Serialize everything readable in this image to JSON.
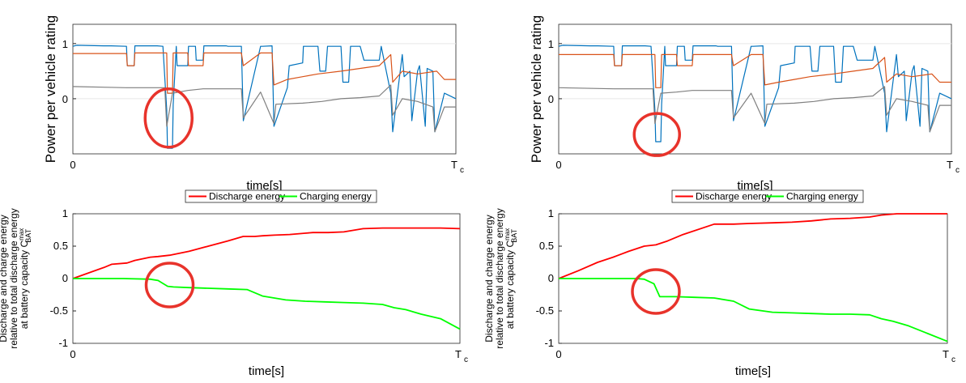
{
  "colors": {
    "power_orange": "#d95319",
    "power_blue": "#0072bd",
    "power_gray": "#7f7f7f",
    "discharge": "#ff0000",
    "charging": "#00ff00",
    "highlight_circle": "#e8332b"
  },
  "chart_data": [
    {
      "id": "left-power",
      "type": "line",
      "xlabel": "time[s]",
      "ylabel": "Power per vehicle rating",
      "x_ticks": [
        "0",
        "T",
        "c"
      ],
      "y_ticks": [
        "1",
        "0"
      ],
      "xlim": [
        0,
        1
      ],
      "ylim": [
        -1,
        1.35
      ],
      "grid": true,
      "series": [
        {
          "color": "power_blue",
          "x": [
            0,
            0.01,
            0.08,
            0.1,
            0.14,
            0.142,
            0.16,
            0.162,
            0.22,
            0.235,
            0.245,
            0.247,
            0.26,
            0.262,
            0.27,
            0.272,
            0.3,
            0.302,
            0.32,
            0.322,
            0.34,
            0.342,
            0.4,
            0.405,
            0.44,
            0.445,
            0.49,
            0.495,
            0.52,
            0.525,
            0.56,
            0.565,
            0.6,
            0.602,
            0.64,
            0.645,
            0.66,
            0.665,
            0.7,
            0.705,
            0.72,
            0.725,
            0.75,
            0.76,
            0.8,
            0.805,
            0.83,
            0.835,
            0.86,
            0.865,
            0.88,
            0.885,
            0.9,
            0.905,
            0.92,
            0.925,
            0.94,
            0.945,
            0.97,
            1
          ],
          "y": [
            0.95,
            0.97,
            0.96,
            0.96,
            0.95,
            0.6,
            0.6,
            0.96,
            0.96,
            0.95,
            -0.2,
            -0.9,
            -0.9,
            -0.1,
            0.95,
            0.6,
            0.6,
            0.95,
            0.95,
            0.7,
            0.7,
            0.96,
            0.96,
            0.95,
            0.95,
            -0.4,
            0.95,
            0.95,
            0.96,
            -0.5,
            0.2,
            0.6,
            0.65,
            0.95,
            0.95,
            0.5,
            0.5,
            0.95,
            0.95,
            0.3,
            0.3,
            0.95,
            0.95,
            0.7,
            0.7,
            0.95,
            0.1,
            -0.6,
            0.8,
            0.4,
            0.5,
            -0.4,
            0.5,
            0.6,
            -0.5,
            0.55,
            0.5,
            -0.6,
            0.1,
            0
          ]
        },
        {
          "color": "power_orange",
          "x": [
            0,
            0.14,
            0.142,
            0.16,
            0.162,
            0.245,
            0.247,
            0.26,
            0.262,
            0.3,
            0.302,
            0.34,
            0.342,
            0.44,
            0.445,
            0.49,
            0.495,
            0.52,
            0.525,
            0.56,
            0.6,
            0.64,
            0.7,
            0.75,
            0.8,
            0.83,
            0.835,
            0.86,
            0.9,
            0.95,
            0.97,
            1
          ],
          "y": [
            0.82,
            0.82,
            0.6,
            0.6,
            0.83,
            0.83,
            0.1,
            0.1,
            0.83,
            0.83,
            0.6,
            0.6,
            0.83,
            0.83,
            0.6,
            0.83,
            0.83,
            0.83,
            0.25,
            0.35,
            0.4,
            0.45,
            0.5,
            0.55,
            0.6,
            0.8,
            0.3,
            0.5,
            0.45,
            0.5,
            0.35,
            0.35
          ]
        },
        {
          "color": "power_gray",
          "x": [
            0,
            0.14,
            0.16,
            0.24,
            0.245,
            0.26,
            0.3,
            0.34,
            0.44,
            0.445,
            0.49,
            0.525,
            0.53,
            0.6,
            0.65,
            0.7,
            0.75,
            0.8,
            0.83,
            0.835,
            0.86,
            0.9,
            0.94,
            0.945,
            0.97,
            1
          ],
          "y": [
            0.22,
            0.2,
            0.2,
            0.2,
            -0.5,
            0.1,
            0.15,
            0.18,
            0.18,
            -0.35,
            0.12,
            -0.45,
            -0.1,
            -0.08,
            -0.05,
            0.0,
            0.02,
            0.05,
            0.25,
            -0.3,
            0.0,
            -0.05,
            -0.15,
            -0.6,
            -0.15,
            -0.15
          ]
        }
      ],
      "highlight": {
        "x": 0.25,
        "y": -0.35
      }
    },
    {
      "id": "right-power",
      "type": "line",
      "xlabel": "time[s]",
      "ylabel": "Power per vehicle rating",
      "x_ticks": [
        "0",
        "T",
        "c"
      ],
      "y_ticks": [
        "1",
        "0"
      ],
      "xlim": [
        0,
        1
      ],
      "ylim": [
        -1,
        1.35
      ],
      "grid": true,
      "series": [
        {
          "color": "power_blue",
          "x": [
            0,
            0.01,
            0.08,
            0.1,
            0.14,
            0.142,
            0.16,
            0.162,
            0.22,
            0.235,
            0.245,
            0.247,
            0.26,
            0.262,
            0.27,
            0.272,
            0.3,
            0.302,
            0.32,
            0.322,
            0.34,
            0.342,
            0.4,
            0.405,
            0.44,
            0.445,
            0.49,
            0.495,
            0.52,
            0.525,
            0.56,
            0.565,
            0.6,
            0.602,
            0.64,
            0.645,
            0.66,
            0.665,
            0.7,
            0.705,
            0.72,
            0.725,
            0.75,
            0.76,
            0.8,
            0.805,
            0.83,
            0.835,
            0.86,
            0.865,
            0.88,
            0.885,
            0.9,
            0.905,
            0.92,
            0.925,
            0.94,
            0.945,
            0.97,
            1
          ],
          "y": [
            0.95,
            0.97,
            0.96,
            0.96,
            0.95,
            0.6,
            0.6,
            0.96,
            0.96,
            0.95,
            -0.2,
            -0.78,
            -0.78,
            -0.1,
            0.95,
            0.6,
            0.6,
            0.95,
            0.95,
            0.7,
            0.7,
            0.96,
            0.96,
            0.95,
            0.95,
            -0.4,
            0.95,
            0.95,
            0.96,
            -0.5,
            0.2,
            0.6,
            0.65,
            0.95,
            0.95,
            0.5,
            0.5,
            0.95,
            0.95,
            0.3,
            0.3,
            0.95,
            0.95,
            0.7,
            0.7,
            0.95,
            0.1,
            -0.6,
            0.8,
            0.4,
            0.5,
            -0.4,
            0.5,
            0.6,
            -0.5,
            0.55,
            0.5,
            -0.6,
            0.1,
            0
          ]
        },
        {
          "color": "power_orange",
          "x": [
            0,
            0.14,
            0.142,
            0.16,
            0.162,
            0.245,
            0.247,
            0.26,
            0.262,
            0.3,
            0.302,
            0.34,
            0.342,
            0.44,
            0.445,
            0.49,
            0.495,
            0.52,
            0.525,
            0.56,
            0.6,
            0.64,
            0.7,
            0.75,
            0.8,
            0.83,
            0.835,
            0.86,
            0.9,
            0.95,
            0.97,
            1
          ],
          "y": [
            0.8,
            0.8,
            0.6,
            0.6,
            0.8,
            0.8,
            0.2,
            0.2,
            0.8,
            0.8,
            0.6,
            0.6,
            0.8,
            0.8,
            0.6,
            0.8,
            0.8,
            0.8,
            0.25,
            0.3,
            0.35,
            0.4,
            0.45,
            0.5,
            0.55,
            0.75,
            0.3,
            0.45,
            0.4,
            0.45,
            0.3,
            0.3
          ]
        },
        {
          "color": "power_gray",
          "x": [
            0,
            0.14,
            0.16,
            0.24,
            0.245,
            0.26,
            0.3,
            0.34,
            0.44,
            0.445,
            0.49,
            0.525,
            0.53,
            0.6,
            0.65,
            0.7,
            0.75,
            0.8,
            0.83,
            0.835,
            0.86,
            0.9,
            0.94,
            0.945,
            0.97,
            1
          ],
          "y": [
            0.2,
            0.18,
            0.18,
            0.18,
            -0.45,
            0.1,
            0.12,
            0.15,
            0.15,
            -0.35,
            0.1,
            -0.45,
            -0.1,
            -0.08,
            -0.05,
            0.0,
            0.02,
            0.05,
            0.22,
            -0.3,
            0.0,
            -0.05,
            -0.12,
            -0.6,
            -0.12,
            -0.12
          ]
        }
      ],
      "highlight": {
        "x": 0.25,
        "y": -0.65
      }
    },
    {
      "id": "left-energy",
      "type": "line",
      "xlabel": "time[s]",
      "ylabel_lines": [
        "Discharge and charge energy",
        "relative to total discharge energy",
        "at battery capacity C"
      ],
      "ylabel_sup": "max",
      "ylabel_sub": "BAT",
      "x_ticks": [
        "0",
        "T",
        "c"
      ],
      "y_ticks": [
        "1",
        "0.5",
        "0",
        "-0.5",
        "-1"
      ],
      "xlim": [
        0,
        1
      ],
      "ylim": [
        -1,
        1
      ],
      "grid": false,
      "legend": {
        "placement": "top",
        "entries": [
          "Discharge energy",
          "Charging energy"
        ]
      },
      "series": [
        {
          "name": "Discharge energy",
          "color": "discharge",
          "x": [
            0,
            0.08,
            0.1,
            0.14,
            0.16,
            0.2,
            0.22,
            0.25,
            0.3,
            0.35,
            0.4,
            0.44,
            0.47,
            0.49,
            0.52,
            0.56,
            0.6,
            0.62,
            0.66,
            0.7,
            0.75,
            0.8,
            0.85,
            0.9,
            0.95,
            1
          ],
          "y": [
            0,
            0.17,
            0.22,
            0.24,
            0.28,
            0.33,
            0.34,
            0.36,
            0.42,
            0.5,
            0.58,
            0.65,
            0.65,
            0.66,
            0.67,
            0.68,
            0.7,
            0.71,
            0.71,
            0.72,
            0.77,
            0.78,
            0.78,
            0.78,
            0.78,
            0.77
          ]
        },
        {
          "name": "Charging energy",
          "color": "charging",
          "x": [
            0,
            0.13,
            0.2,
            0.22,
            0.245,
            0.26,
            0.3,
            0.4,
            0.45,
            0.49,
            0.55,
            0.6,
            0.65,
            0.7,
            0.75,
            0.8,
            0.83,
            0.86,
            0.9,
            0.95,
            1
          ],
          "y": [
            0,
            0,
            -0.01,
            -0.03,
            -0.12,
            -0.13,
            -0.14,
            -0.16,
            -0.17,
            -0.27,
            -0.33,
            -0.35,
            -0.36,
            -0.37,
            -0.38,
            -0.4,
            -0.45,
            -0.48,
            -0.55,
            -0.62,
            -0.78
          ]
        }
      ],
      "highlight": {
        "x": 0.25,
        "y": -0.1
      }
    },
    {
      "id": "right-energy",
      "type": "line",
      "xlabel": "time[s]",
      "ylabel_lines": [
        "Discharge and charge energy",
        "relative to total discharge energy",
        "at battery capacity C"
      ],
      "ylabel_sup": "max",
      "ylabel_sub": "BAT",
      "x_ticks": [
        "0",
        "T",
        "c"
      ],
      "y_ticks": [
        "1",
        "0.5",
        "0",
        "-0.5",
        "-1"
      ],
      "xlim": [
        0,
        1
      ],
      "ylim": [
        -1,
        1
      ],
      "grid": false,
      "legend": {
        "placement": "top",
        "entries": [
          "Discharge energy",
          "Charging energy"
        ]
      },
      "series": [
        {
          "name": "Discharge energy",
          "color": "discharge",
          "x": [
            0,
            0.05,
            0.1,
            0.14,
            0.18,
            0.22,
            0.25,
            0.28,
            0.32,
            0.4,
            0.45,
            0.49,
            0.55,
            0.6,
            0.65,
            0.7,
            0.75,
            0.8,
            0.83,
            0.87,
            0.9,
            0.95,
            1
          ],
          "y": [
            0,
            0.12,
            0.25,
            0.33,
            0.42,
            0.5,
            0.52,
            0.58,
            0.68,
            0.84,
            0.84,
            0.85,
            0.86,
            0.87,
            0.89,
            0.92,
            0.93,
            0.95,
            0.98,
            1,
            1,
            1,
            1
          ]
        },
        {
          "name": "Charging energy",
          "color": "charging",
          "x": [
            0,
            0.2,
            0.22,
            0.245,
            0.26,
            0.3,
            0.35,
            0.4,
            0.45,
            0.49,
            0.55,
            0.6,
            0.65,
            0.7,
            0.75,
            0.8,
            0.83,
            0.86,
            0.9,
            0.95,
            1
          ],
          "y": [
            0,
            0,
            -0.01,
            -0.08,
            -0.28,
            -0.28,
            -0.29,
            -0.3,
            -0.35,
            -0.47,
            -0.52,
            -0.53,
            -0.54,
            -0.55,
            -0.55,
            -0.56,
            -0.62,
            -0.66,
            -0.73,
            -0.85,
            -0.97
          ]
        }
      ],
      "highlight": {
        "x": 0.25,
        "y": -0.2
      }
    }
  ]
}
